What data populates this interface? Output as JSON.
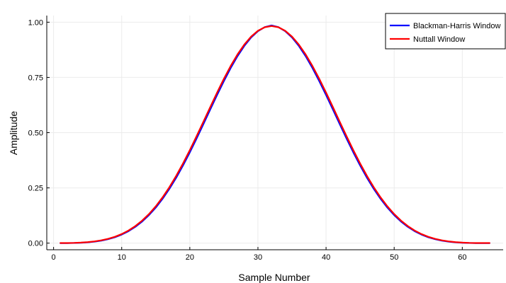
{
  "chart_data": {
    "type": "line",
    "title": "",
    "xlabel": "Sample Number",
    "ylabel": "Amplitude",
    "xlim": [
      -1,
      66
    ],
    "ylim": [
      -0.03,
      1.03
    ],
    "xticks": [
      0,
      10,
      20,
      30,
      40,
      50,
      60
    ],
    "xtick_labels": [
      "0",
      "10",
      "20",
      "30",
      "40",
      "50",
      "60"
    ],
    "yticks": [
      0,
      0.25,
      0.5,
      0.75,
      1.0
    ],
    "ytick_labels": [
      "0.00",
      "0.25",
      "0.50",
      "0.75",
      "1.00"
    ],
    "grid": true,
    "legend_position": "top-right",
    "x": [
      1,
      2,
      3,
      4,
      5,
      6,
      7,
      8,
      9,
      10,
      11,
      12,
      13,
      14,
      15,
      16,
      17,
      18,
      19,
      20,
      21,
      22,
      23,
      24,
      25,
      26,
      27,
      28,
      29,
      30,
      31,
      32,
      33,
      34,
      35,
      36,
      37,
      38,
      39,
      40,
      41,
      42,
      43,
      44,
      45,
      46,
      47,
      48,
      49,
      50,
      51,
      52,
      53,
      54,
      55,
      56,
      57,
      58,
      59,
      60,
      61,
      62,
      63,
      64
    ],
    "series": [
      {
        "name": "Blackman-Harris Window",
        "color": "#0000ff",
        "values": [
          0.0001,
          0.0001,
          0.0006,
          0.0017,
          0.0036,
          0.0066,
          0.0112,
          0.0177,
          0.0267,
          0.0387,
          0.0542,
          0.0737,
          0.0978,
          0.1267,
          0.1609,
          0.2006,
          0.2457,
          0.2961,
          0.3514,
          0.4109,
          0.4738,
          0.539,
          0.605,
          0.6704,
          0.7335,
          0.7927,
          0.8463,
          0.8928,
          0.9309,
          0.9595,
          0.9779,
          0.9854,
          0.9779,
          0.9595,
          0.9309,
          0.8928,
          0.8463,
          0.7927,
          0.7335,
          0.6704,
          0.605,
          0.539,
          0.4738,
          0.4109,
          0.3514,
          0.2961,
          0.2457,
          0.2006,
          0.1609,
          0.1267,
          0.0978,
          0.0737,
          0.0542,
          0.0387,
          0.0267,
          0.0177,
          0.0112,
          0.0066,
          0.0036,
          0.0017,
          0.0006,
          0.0001,
          0.0001,
          0.0001
        ]
      },
      {
        "name": "Nuttall Window",
        "color": "#ff0000",
        "values": [
          0.0004,
          0.0005,
          0.0011,
          0.0024,
          0.0045,
          0.0078,
          0.0126,
          0.0194,
          0.0287,
          0.0411,
          0.0571,
          0.0772,
          0.1019,
          0.1316,
          0.1666,
          0.2071,
          0.2531,
          0.3044,
          0.3605,
          0.4208,
          0.4843,
          0.5498,
          0.616,
          0.6812,
          0.7437,
          0.8019,
          0.8541,
          0.8988,
          0.9348,
          0.9611,
          0.9771,
          0.9825,
          0.9771,
          0.9611,
          0.9348,
          0.8988,
          0.8541,
          0.8019,
          0.7437,
          0.6812,
          0.616,
          0.5498,
          0.4843,
          0.4208,
          0.3605,
          0.3044,
          0.2531,
          0.2071,
          0.1666,
          0.1316,
          0.1019,
          0.0772,
          0.0571,
          0.0411,
          0.0287,
          0.0194,
          0.0126,
          0.0078,
          0.0045,
          0.0024,
          0.0011,
          0.0005,
          0.0004,
          0.0004
        ]
      }
    ]
  }
}
